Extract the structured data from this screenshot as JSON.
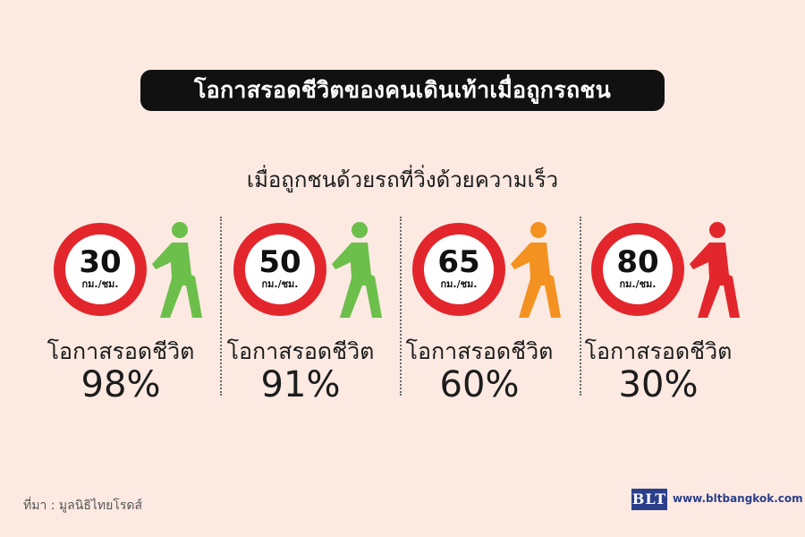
{
  "title": "โอกาสรอดชีวิตของคนเดินเท้าเมื่อถูกรถชน",
  "subtitle": "เมื่อถูกชนด้วยรถที่วิ่งด้วยความเร็ว",
  "speed_unit": "กม./ชม.",
  "survival_label": "โอกาสรอดชีวิต",
  "panels": [
    {
      "speed": "30",
      "survival": "98%",
      "walker_color": "#6cbf4a"
    },
    {
      "speed": "50",
      "survival": "91%",
      "walker_color": "#6cbf4a"
    },
    {
      "speed": "65",
      "survival": "60%",
      "walker_color": "#f39220"
    },
    {
      "speed": "80",
      "survival": "30%",
      "walker_color": "#e3262c"
    }
  ],
  "sign_ring_color": "#e3262c",
  "source": "ที่มา : มูลนิธิไทยโรดส์",
  "brand": {
    "logo_text": "BLT",
    "website": "www.bltbangkok.com"
  }
}
